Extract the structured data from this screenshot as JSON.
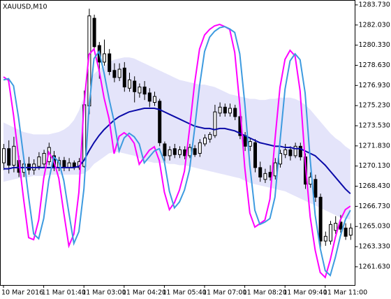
{
  "chart_data": {
    "type": "candlestick",
    "title": "XAUUSD,M10",
    "categories": [
      "10 Mar 2016",
      null,
      null,
      null,
      null,
      null,
      null,
      null,
      "11 Mar 01:40",
      null,
      null,
      null,
      null,
      null,
      null,
      null,
      "11 Mar 03:00",
      null,
      null,
      null,
      null,
      null,
      null,
      null,
      "11 Mar 04:20",
      null,
      null,
      null,
      null,
      null,
      null,
      null,
      "11 Mar 05:40",
      null,
      null,
      null,
      null,
      null,
      null,
      null,
      "11 Mar 07:00",
      null,
      null,
      null,
      null,
      null,
      null,
      null,
      "11 Mar 08:20",
      null,
      null,
      null,
      null,
      null,
      null,
      null,
      "11 Mar 09:40",
      null,
      null,
      null,
      null,
      null,
      null,
      null,
      "11 Mar 11:00",
      null,
      null,
      null,
      null,
      null
    ],
    "open": [
      1270.4,
      1271.6,
      1270.2,
      1270.6,
      1269.6,
      1270.3,
      1269.8,
      1270.1,
      1270.3,
      1270.5,
      1271.0,
      1270.0,
      1270.6,
      1270.0,
      1270.4,
      1270.0,
      1270.1,
      1275.2,
      1282.6,
      1280.3,
      1278.9,
      1279.6,
      1278.2,
      1277.6,
      1278.4,
      1276.7,
      1277.3,
      1276.3,
      1276.8,
      1276.3,
      1275.5,
      1275.6,
      1272.0,
      1271.0,
      1271.6,
      1271.1,
      1271.5,
      1271.0,
      1271.6,
      1271.2,
      1272.0,
      1272.4,
      1272.7,
      1274.6,
      1275.1,
      1274.6,
      1275.0,
      1274.3,
      1272.7,
      1271.8,
      1272.1,
      1270.0,
      1269.0,
      1269.6,
      1269.3,
      1270.3,
      1271.1,
      1271.5,
      1271.0,
      1271.8,
      1270.9,
      1268.6,
      1269.0,
      1267.5,
      1263.8,
      1263.8,
      1264.7,
      1265.4,
      1264.9,
      1264.3
    ],
    "high": [
      1272.0,
      1272.3,
      1272.6,
      1271.0,
      1270.8,
      1270.9,
      1270.7,
      1271.3,
      1271.5,
      1272.1,
      1271.4,
      1270.9,
      1270.9,
      1270.8,
      1270.6,
      1270.8,
      1276.5,
      1283.4,
      1282.9,
      1280.6,
      1280.8,
      1280.0,
      1278.8,
      1278.8,
      1278.9,
      1278.0,
      1277.7,
      1277.1,
      1277.3,
      1276.7,
      1276.4,
      1275.8,
      1272.2,
      1271.8,
      1272.0,
      1271.8,
      1271.8,
      1272.0,
      1271.9,
      1272.4,
      1272.8,
      1273.0,
      1275.3,
      1275.5,
      1275.4,
      1275.4,
      1275.3,
      1274.7,
      1273.0,
      1272.5,
      1272.4,
      1270.5,
      1269.9,
      1270.2,
      1270.8,
      1271.5,
      1272.0,
      1271.8,
      1272.1,
      1272.1,
      1271.2,
      1269.6,
      1269.4,
      1267.8,
      1264.6,
      1265.5,
      1265.9,
      1266.0,
      1265.3,
      1265.3
    ],
    "low": [
      1269.8,
      1269.5,
      1269.6,
      1269.2,
      1269.2,
      1269.4,
      1269.4,
      1269.8,
      1270.0,
      1270.2,
      1269.7,
      1269.7,
      1269.7,
      1269.7,
      1269.8,
      1269.8,
      1270.0,
      1274.5,
      1279.8,
      1277.5,
      1278.6,
      1277.8,
      1277.2,
      1277.3,
      1276.4,
      1276.4,
      1275.5,
      1275.9,
      1275.7,
      1275.1,
      1275.2,
      1271.8,
      1270.4,
      1270.6,
      1270.8,
      1270.8,
      1270.7,
      1270.8,
      1270.9,
      1270.9,
      1271.8,
      1272.1,
      1272.5,
      1274.3,
      1274.3,
      1274.3,
      1274.0,
      1272.4,
      1271.4,
      1271.4,
      1269.6,
      1268.8,
      1268.7,
      1268.9,
      1269.0,
      1270.0,
      1270.8,
      1270.6,
      1270.8,
      1270.6,
      1268.2,
      1268.3,
      1267.1,
      1263.2,
      1263.4,
      1263.5,
      1264.4,
      1264.5,
      1263.9,
      1263.9
    ],
    "close": [
      1271.6,
      1270.2,
      1271.8,
      1269.6,
      1270.3,
      1269.8,
      1270.3,
      1270.9,
      1271.2,
      1271.7,
      1270.0,
      1270.6,
      1270.0,
      1270.4,
      1270.0,
      1270.5,
      1275.3,
      1282.8,
      1280.2,
      1278.9,
      1279.6,
      1278.1,
      1277.6,
      1278.3,
      1276.8,
      1277.4,
      1276.4,
      1276.8,
      1276.2,
      1275.6,
      1276.0,
      1272.1,
      1271.0,
      1271.5,
      1271.1,
      1271.5,
      1271.0,
      1271.7,
      1271.1,
      1272.1,
      1272.5,
      1272.8,
      1274.7,
      1275.1,
      1274.6,
      1275.0,
      1274.3,
      1272.7,
      1271.8,
      1272.2,
      1270.0,
      1269.2,
      1269.5,
      1269.2,
      1270.4,
      1271.2,
      1271.5,
      1271.0,
      1271.8,
      1270.9,
      1268.6,
      1269.2,
      1267.5,
      1263.8,
      1264.2,
      1265.2,
      1265.3,
      1264.8,
      1264.2,
      1264.9
    ],
    "up_color": "#ffffff",
    "down_color": "#000000",
    "band": {
      "color": "#e4e4fa",
      "upper": [
        1273.8,
        1273.6,
        1273.4,
        1273.2,
        1273.0,
        1272.9,
        1272.8,
        1272.8,
        1272.8,
        1272.8,
        1272.9,
        1273.0,
        1273.2,
        1273.5,
        1274.0,
        1274.8,
        1276.0,
        1277.3,
        1277.9,
        1278.3,
        1278.6,
        1278.9,
        1279.1,
        1279.2,
        1279.3,
        1279.3,
        1279.2,
        1279.0,
        1278.8,
        1278.6,
        1278.4,
        1278.2,
        1278.0,
        1277.8,
        1277.6,
        1277.4,
        1277.3,
        1277.2,
        1277.1,
        1277.0,
        1277.0,
        1276.9,
        1276.8,
        1276.6,
        1276.4,
        1276.2,
        1276.1,
        1276.0,
        1275.9,
        1275.8,
        1275.8,
        1275.7,
        1275.7,
        1275.8,
        1275.8,
        1275.9,
        1275.9,
        1275.9,
        1275.8,
        1275.6,
        1275.3,
        1274.9,
        1274.4,
        1273.9,
        1273.4,
        1272.9,
        1272.5,
        1272.2,
        1271.8,
        1271.5
      ],
      "lower": [
        1268.8,
        1268.9,
        1269.0,
        1269.1,
        1269.2,
        1269.2,
        1269.3,
        1269.3,
        1269.3,
        1269.4,
        1269.4,
        1269.4,
        1269.4,
        1269.4,
        1269.4,
        1269.4,
        1269.5,
        1269.8,
        1270.3,
        1270.6,
        1270.9,
        1271.2,
        1271.3,
        1271.3,
        1271.2,
        1271.1,
        1271.0,
        1270.8,
        1270.6,
        1270.5,
        1270.4,
        1270.4,
        1270.4,
        1270.3,
        1270.3,
        1270.2,
        1270.2,
        1270.1,
        1270.0,
        1269.9,
        1269.8,
        1269.7,
        1269.6,
        1269.5,
        1269.4,
        1269.3,
        1269.2,
        1269.1,
        1268.9,
        1268.7,
        1268.6,
        1268.5,
        1268.4,
        1268.3,
        1268.2,
        1268.1,
        1268.0,
        1267.8,
        1267.6,
        1267.4,
        1267.2,
        1267.0,
        1266.8,
        1266.6,
        1266.4,
        1266.2,
        1266.0,
        1265.8,
        1265.7,
        1265.6
      ]
    },
    "series": [
      {
        "color": "#0a0aa8",
        "values": [
          1269.9,
          1269.9,
          1270.0,
          1270.0,
          1270.0,
          1270.0,
          1270.0,
          1270.0,
          1270.0,
          1270.0,
          1270.0,
          1270.0,
          1270.0,
          1270.0,
          1270.0,
          1270.1,
          1270.6,
          1271.4,
          1272.1,
          1272.7,
          1273.2,
          1273.6,
          1274.0,
          1274.3,
          1274.5,
          1274.7,
          1274.8,
          1274.9,
          1275.0,
          1275.0,
          1275.0,
          1274.9,
          1274.7,
          1274.5,
          1274.3,
          1274.1,
          1273.9,
          1273.7,
          1273.5,
          1273.4,
          1273.3,
          1273.3,
          1273.2,
          1273.3,
          1273.3,
          1273.2,
          1273.1,
          1272.9,
          1272.7,
          1272.5,
          1272.3,
          1272.1,
          1272.0,
          1271.9,
          1271.8,
          1271.8,
          1271.7,
          1271.7,
          1271.6,
          1271.6,
          1271.4,
          1271.2,
          1271.0,
          1270.6,
          1270.2,
          1269.7,
          1269.2,
          1268.7,
          1268.2,
          1267.8
        ]
      },
      {
        "color": "#ff00ff",
        "values": [
          1277.65,
          1277.36,
          1274.41,
          1270.87,
          1267.34,
          1264.09,
          1263.92,
          1265.57,
          1269.1,
          1271.29,
          1270.58,
          1269.1,
          1266.16,
          1263.39,
          1264.39,
          1267.93,
          1275.3,
          1279.54,
          1280.01,
          1278.24,
          1275.89,
          1274.12,
          1271.17,
          1272.64,
          1272.94,
          1272.64,
          1272.05,
          1270.28,
          1270.87,
          1271.46,
          1271.76,
          1270.58,
          1267.93,
          1266.45,
          1267.04,
          1268.1,
          1269.7,
          1273.23,
          1277.06,
          1280.01,
          1281.19,
          1281.66,
          1281.96,
          1282.08,
          1281.9,
          1281.66,
          1279.72,
          1275.3,
          1269.99,
          1266.16,
          1264.98,
          1265.27,
          1265.57,
          1267.34,
          1272.35,
          1276.77,
          1279.13,
          1279.89,
          1279.42,
          1276.47,
          1270.58,
          1265.86,
          1263.03,
          1261.15,
          1260.73,
          1262.21,
          1264.09,
          1265.57,
          1266.45,
          1266.75
        ]
      },
      {
        "color": "#3d9be0",
        "values": [
          1277.4,
          1277.5,
          1276.9,
          1274.2,
          1270.9,
          1267.5,
          1264.4,
          1264.0,
          1265.7,
          1268.9,
          1270.9,
          1270.5,
          1268.9,
          1266.2,
          1263.6,
          1264.6,
          1268.2,
          1275.0,
          1279.2,
          1279.8,
          1278.0,
          1275.8,
          1273.9,
          1271.4,
          1272.5,
          1272.9,
          1272.6,
          1272.0,
          1270.4,
          1270.9,
          1271.4,
          1271.6,
          1270.5,
          1268.0,
          1266.6,
          1267.1,
          1268.1,
          1269.8,
          1273.2,
          1276.9,
          1279.8,
          1281.0,
          1281.5,
          1281.8,
          1281.9,
          1281.7,
          1281.4,
          1279.6,
          1275.4,
          1270.2,
          1266.4,
          1265.2,
          1265.4,
          1265.7,
          1267.5,
          1272.2,
          1276.6,
          1279.0,
          1279.6,
          1279.1,
          1276.3,
          1270.7,
          1266.0,
          1263.2,
          1261.3,
          1260.9,
          1262.4,
          1264.2,
          1265.6,
          1266.4
        ]
      }
    ],
    "ylim": [
      1260.09,
      1284.14
    ],
    "yticks": [
      {
        "value": 1283.73,
        "label": "1283.730"
      },
      {
        "value": 1282.03,
        "label": "1282.030"
      },
      {
        "value": 1280.33,
        "label": "1280.330"
      },
      {
        "value": 1278.63,
        "label": "1278.630"
      },
      {
        "value": 1276.93,
        "label": "1276.930"
      },
      {
        "value": 1275.23,
        "label": "1275.230"
      },
      {
        "value": 1273.53,
        "label": "1273.530"
      },
      {
        "value": 1271.83,
        "label": "1271.830"
      },
      {
        "value": 1270.13,
        "label": "1270.130"
      },
      {
        "value": 1268.43,
        "label": "1268.430"
      },
      {
        "value": 1266.73,
        "label": "1266.730"
      },
      {
        "value": 1265.03,
        "label": "1265.030"
      },
      {
        "value": 1263.33,
        "label": "1263.330"
      },
      {
        "value": 1261.63,
        "label": "1261.630"
      }
    ],
    "grid": false
  }
}
